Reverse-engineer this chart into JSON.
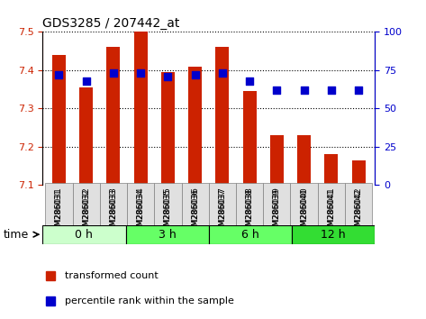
{
  "title": "GDS3285 / 207442_at",
  "samples": [
    "GSM286031",
    "GSM286032",
    "GSM286033",
    "GSM286034",
    "GSM286035",
    "GSM286036",
    "GSM286037",
    "GSM286038",
    "GSM286039",
    "GSM286040",
    "GSM286041",
    "GSM286042"
  ],
  "transformed_count": [
    7.44,
    7.355,
    7.46,
    7.5,
    7.395,
    7.41,
    7.46,
    7.345,
    7.23,
    7.23,
    7.18,
    7.165
  ],
  "percentile_rank": [
    72,
    68,
    73,
    73,
    71,
    72,
    73,
    68,
    62,
    62,
    62,
    62
  ],
  "ylim_left": [
    7.1,
    7.5
  ],
  "ylim_right": [
    0,
    100
  ],
  "yticks_left": [
    7.1,
    7.2,
    7.3,
    7.4,
    7.5
  ],
  "yticks_right": [
    0,
    25,
    50,
    75,
    100
  ],
  "bar_color": "#CC2200",
  "dot_color": "#0000CC",
  "bar_width": 0.5,
  "time_groups": [
    {
      "label": "0 h",
      "start": 0,
      "end": 3,
      "color": "#CCFFCC"
    },
    {
      "label": "3 h",
      "start": 3,
      "end": 6,
      "color": "#66FF66"
    },
    {
      "label": "6 h",
      "start": 6,
      "end": 9,
      "color": "#66FF66"
    },
    {
      "label": "12 h",
      "start": 9,
      "end": 12,
      "color": "#33DD33"
    }
  ],
  "xlabel_label": "time",
  "legend_red_label": "transformed count",
  "legend_blue_label": "percentile rank within the sample",
  "tick_label_color_left": "#CC2200",
  "tick_label_color_right": "#0000CC",
  "grid_color": "black",
  "grid_linestyle": "dotted"
}
